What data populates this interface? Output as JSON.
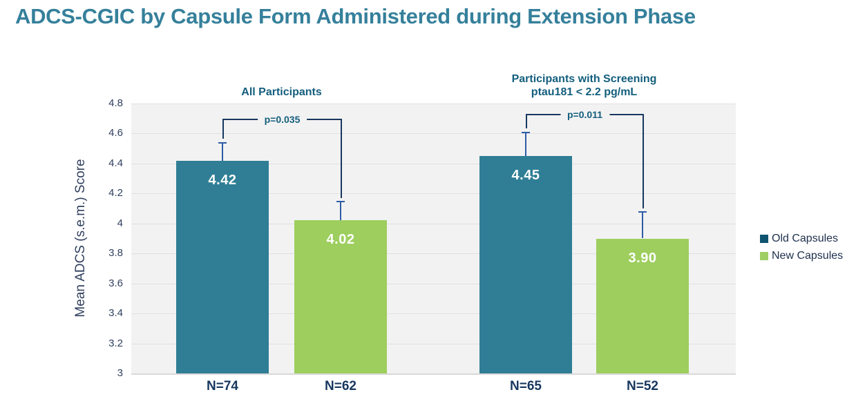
{
  "title": "ADCS-CGIC by Capsule Form Administered during Extension Phase",
  "chart_data": {
    "type": "bar",
    "title": "ADCS-CGIC by Capsule Form Administered during Extension Phase",
    "ylabel": "Mean ADCS (s.e.m.) Score",
    "ylim": [
      3,
      4.8
    ],
    "ytick_step": 0.2,
    "ytick_labels": [
      "4.8",
      "4.6",
      "4.4",
      "4.2",
      "4",
      "3.8",
      "3.6",
      "3.4",
      "3.2",
      "3"
    ],
    "grid": true,
    "legend_position": "right",
    "legend": [
      {
        "label": "Old Capsules",
        "bar_color": "#2F7E95",
        "swatch_color": "#0E5470"
      },
      {
        "label": "New Capsules",
        "bar_color": "#9DCE5E",
        "swatch_color": "#9FCE63"
      }
    ],
    "groups": [
      {
        "title_lines": [
          "All Participants"
        ],
        "p_value_label": "p=0.035",
        "bars": [
          {
            "series": "Old Capsules",
            "value": 4.42,
            "value_label": "4.42",
            "sem": 0.12,
            "n_label": "N=74"
          },
          {
            "series": "New Capsules",
            "value": 4.02,
            "value_label": "4.02",
            "sem": 0.13,
            "n_label": "N=62"
          }
        ]
      },
      {
        "title_lines": [
          "Participants with Screening",
          "ptau181 < 2.2 pg/mL"
        ],
        "p_value_label": "p=0.011",
        "bars": [
          {
            "series": "Old Capsules",
            "value": 4.45,
            "value_label": "4.45",
            "sem": 0.16,
            "n_label": "N=65"
          },
          {
            "series": "New Capsules",
            "value": 3.9,
            "value_label": "3.90",
            "sem": 0.18,
            "n_label": "N=52"
          }
        ]
      }
    ]
  },
  "colors": {
    "title": "#35809B",
    "heading": "#135E7D",
    "value_label": "#FFFFFF",
    "n_label": "#17375E",
    "axis_text": "#303F5E",
    "error_bar": "#2E5CA6",
    "bracket": "#17375E",
    "plot_bg": "#F2F2F2",
    "gridline": "#E0E0E0",
    "axis_line": "#D9D9D9",
    "legend_text": "#1E2F4D"
  }
}
